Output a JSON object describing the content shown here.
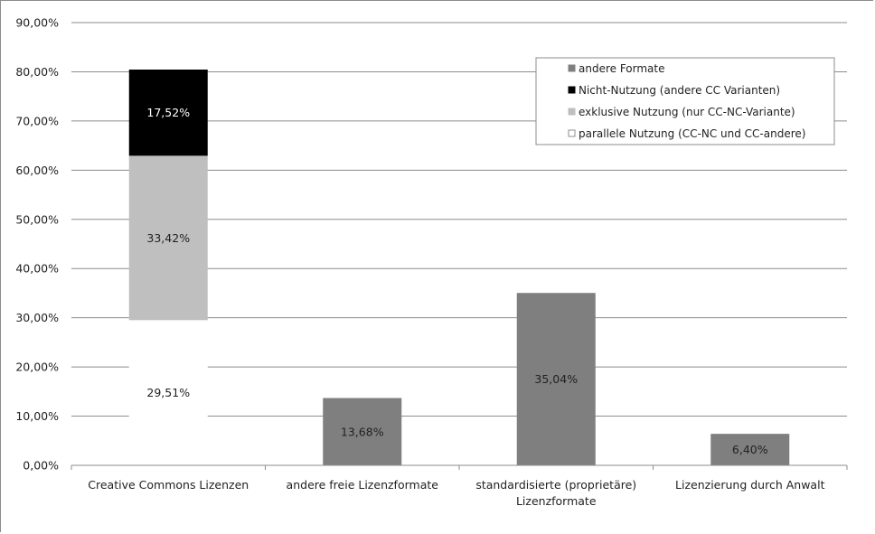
{
  "chart_data": {
    "type": "bar",
    "stacked": true,
    "ylim": [
      0,
      90
    ],
    "y_tick_step": 10,
    "y_ticks": [
      "0,00%",
      "10,00%",
      "20,00%",
      "30,00%",
      "40,00%",
      "50,00%",
      "60,00%",
      "70,00%",
      "80,00%",
      "90,00%"
    ],
    "categories": [
      [
        "Creative Commons Lizenzen"
      ],
      [
        "andere freie Lizenzformate"
      ],
      [
        "standardisierte (proprietäre)",
        "Lizenzformate"
      ],
      [
        "Lizenzierung durch Anwalt"
      ]
    ],
    "grid": true,
    "legend_position": "top-right",
    "series": [
      {
        "name": "parallele Nutzung (CC-NC und CC-andere)",
        "color": "#ffffff",
        "label_color": "#222222",
        "values": [
          29.51,
          null,
          null,
          null
        ],
        "labels": [
          "29,51%",
          "",
          "",
          ""
        ]
      },
      {
        "name": "exklusive Nutzung (nur CC-NC-Variante)",
        "color": "#bfbfbf",
        "label_color": "#222222",
        "values": [
          33.42,
          null,
          null,
          null
        ],
        "labels": [
          "33,42%",
          "",
          "",
          ""
        ]
      },
      {
        "name": "Nicht-Nutzung (andere CC Varianten)",
        "color": "#000000",
        "label_color": "#ffffff",
        "values": [
          17.52,
          null,
          null,
          null
        ],
        "labels": [
          "17,52%",
          "",
          "",
          ""
        ]
      },
      {
        "name": "andere Formate",
        "color": "#7f7f7f",
        "label_color": "#222222",
        "values": [
          null,
          13.68,
          35.04,
          6.4
        ],
        "labels": [
          "",
          "13,68%",
          "35,04%",
          "6,40%"
        ]
      }
    ],
    "legend_order": [
      3,
      2,
      1,
      0
    ]
  }
}
